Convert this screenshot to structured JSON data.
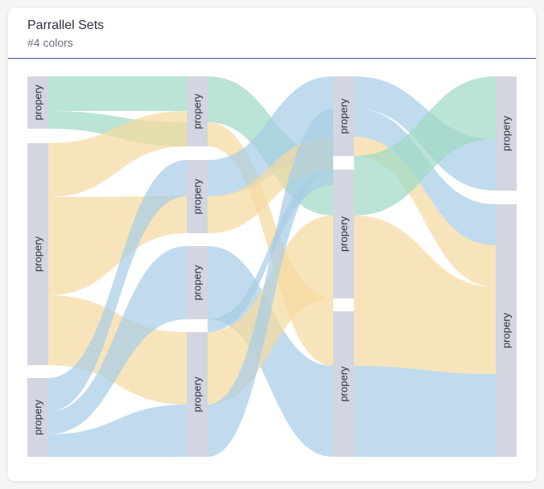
{
  "card": {
    "title": "Parrallel Sets",
    "subtitle": "#4 colors"
  },
  "colors": {
    "green": "#9fd9c5",
    "yellow": "#f5d9a0",
    "blue": "#a8cde6",
    "node": "#d3d6e0",
    "divider": "#3f4fb0"
  },
  "columns": [
    {
      "nodes": [
        {
          "label": "propery"
        },
        {
          "label": "propery"
        },
        {
          "label": "propery"
        }
      ]
    },
    {
      "nodes": [
        {
          "label": "propery"
        },
        {
          "label": "propery"
        },
        {
          "label": "propery"
        },
        {
          "label": "propery"
        }
      ]
    },
    {
      "nodes": [
        {
          "label": "propery"
        },
        {
          "label": "propery"
        },
        {
          "label": "propery"
        }
      ]
    },
    {
      "nodes": [
        {
          "label": "propery"
        },
        {
          "label": "propery"
        }
      ]
    }
  ]
}
